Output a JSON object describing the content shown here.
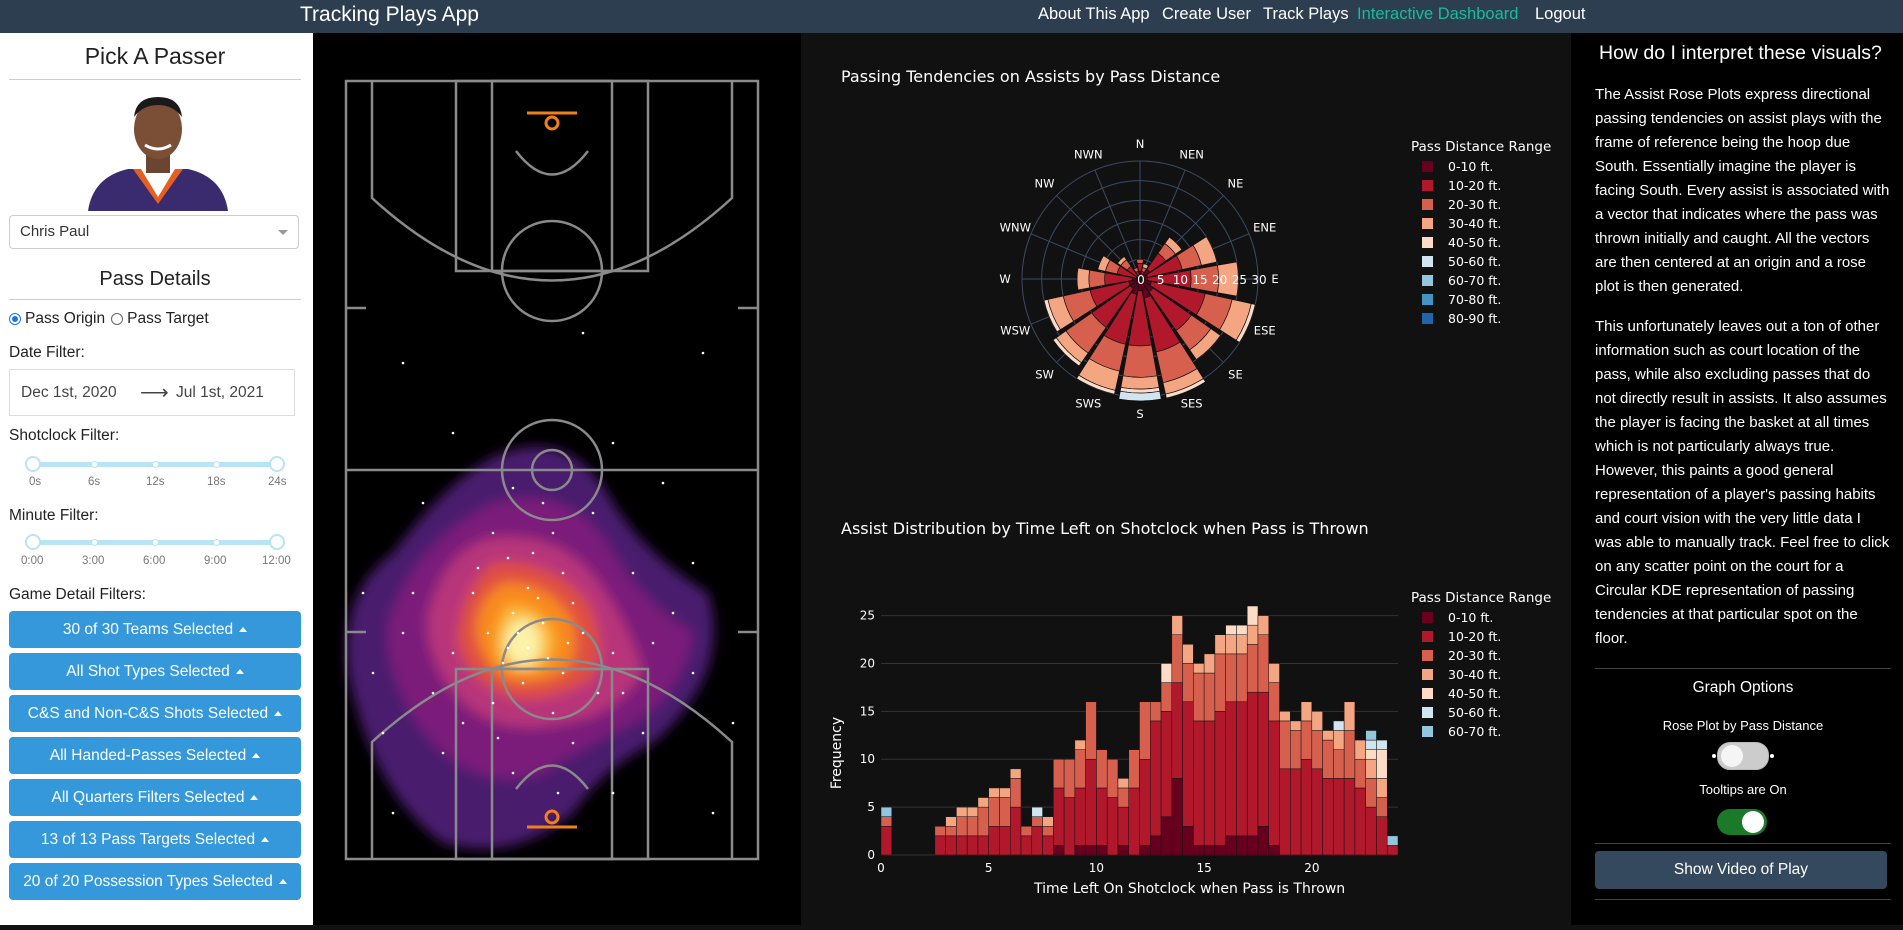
{
  "navbar": {
    "brand": "Tracking Plays App",
    "links": [
      "About This App",
      "Create User",
      "Track Plays",
      "Interactive Dashboard",
      "Logout"
    ],
    "active": "Interactive Dashboard",
    "colors": {
      "bg": "#2c3e50",
      "active": "#18bc9c"
    }
  },
  "sidebar": {
    "pick_title": "Pick A Passer",
    "passer": "Chris Paul",
    "details_title": "Pass Details",
    "radio": {
      "origin": "Pass Origin",
      "target": "Pass Target",
      "selected": "Pass Origin"
    },
    "date_filter_label": "Date Filter:",
    "date_start": "Dec 1st, 2020",
    "date_arrow": "⟶",
    "date_end": "Jul 1st, 2021",
    "shotclock_label": "Shotclock Filter:",
    "shotclock_ticks": [
      "0s",
      "6s",
      "12s",
      "18s",
      "24s"
    ],
    "minute_label": "Minute Filter:",
    "minute_ticks": [
      "0:00",
      "3:00",
      "6:00",
      "9:00",
      "12:00"
    ],
    "game_detail_label": "Game Detail Filters:",
    "filter_buttons": [
      "30 of 30 Teams Selected",
      "All Shot Types Selected",
      "C&S and Non-C&S Shots Selected",
      "All Handed-Passes Selected",
      "All Quarters Filters Selected",
      "13 of 13 Pass Targets Selected",
      "20 of 20 Possession Types Selected"
    ],
    "button_color": "#3498db"
  },
  "rose": {
    "title": "Passing Tendencies on Assists by Pass Distance",
    "directions": [
      "N",
      "NEN",
      "NE",
      "ENE",
      "E",
      "ESE",
      "SE",
      "SES",
      "S",
      "SWS",
      "SW",
      "WSW",
      "W",
      "WNW",
      "NW",
      "NWN"
    ],
    "radial_ticks": [
      "0",
      "5",
      "10",
      "15",
      "20",
      "25",
      "30"
    ],
    "legend_title": "Pass Distance Range",
    "legend": [
      "0-10 ft.",
      "10-20 ft.",
      "20-30 ft.",
      "30-40 ft.",
      "40-50 ft.",
      "50-60 ft.",
      "60-70 ft.",
      "70-80 ft.",
      "80-90 ft."
    ]
  },
  "histogram": {
    "title": "Assist Distribution by Time Left on Shotclock when Pass is Thrown",
    "xlabel": "Time Left On Shotclock when Pass is Thrown",
    "ylabel": "Frequency",
    "xticks": [
      "0",
      "5",
      "10",
      "15",
      "20"
    ],
    "yticks": [
      "0",
      "5",
      "10",
      "15",
      "20",
      "25"
    ],
    "legend_title": "Pass Distance Range",
    "legend": [
      "0-10 ft.",
      "10-20 ft.",
      "20-30 ft.",
      "30-40 ft.",
      "40-50 ft.",
      "50-60 ft.",
      "60-70 ft."
    ]
  },
  "chart_data": {
    "type": "bar",
    "title": "Assist Distribution by Time Left on Shotclock when Pass is Thrown",
    "xlabel": "Time Left On Shotclock when Pass is Thrown",
    "ylabel": "Frequency",
    "xlim": [
      0,
      24
    ],
    "ylim": [
      0,
      26
    ],
    "bin_width": 0.5,
    "stacked": true,
    "bins": [
      [
        0,
        5,
        [
          0,
          3,
          1,
          0,
          0,
          0,
          1
        ]
      ],
      [
        0.5,
        0,
        [
          0,
          0,
          0,
          0,
          0,
          0,
          0
        ]
      ],
      [
        1,
        0,
        [
          0,
          0,
          0,
          0,
          0,
          0,
          0
        ]
      ],
      [
        1.5,
        0,
        [
          0,
          0,
          0,
          0,
          0,
          0,
          0
        ]
      ],
      [
        2,
        0,
        [
          0,
          0,
          0,
          0,
          0,
          0,
          0
        ]
      ],
      [
        2.5,
        3,
        [
          0,
          2,
          1,
          0,
          0,
          0,
          0
        ]
      ],
      [
        3,
        4,
        [
          0,
          2,
          1,
          1,
          0,
          0,
          0
        ]
      ],
      [
        3.5,
        5,
        [
          0,
          2,
          2,
          1,
          0,
          0,
          0
        ]
      ],
      [
        4,
        5,
        [
          0,
          2,
          2,
          1,
          0,
          0,
          0
        ]
      ],
      [
        4.5,
        6,
        [
          0,
          2,
          3,
          1,
          0,
          0,
          0
        ]
      ],
      [
        5,
        7,
        [
          0,
          3,
          3,
          1,
          0,
          0,
          0
        ]
      ],
      [
        5.5,
        7,
        [
          0,
          3,
          3,
          1,
          0,
          0,
          0
        ]
      ],
      [
        6,
        9,
        [
          0,
          5,
          3,
          1,
          0,
          0,
          0
        ]
      ],
      [
        6.5,
        3,
        [
          0,
          2,
          1,
          0,
          0,
          0,
          0
        ]
      ],
      [
        7,
        5,
        [
          0,
          3,
          1,
          0,
          0,
          1,
          0
        ]
      ],
      [
        7.5,
        4,
        [
          0,
          2,
          1,
          1,
          0,
          0,
          0
        ]
      ],
      [
        8,
        10,
        [
          1,
          6,
          3,
          0,
          0,
          0,
          0
        ]
      ],
      [
        8.5,
        10,
        [
          0,
          6,
          4,
          0,
          0,
          0,
          0
        ]
      ],
      [
        9,
        12,
        [
          1,
          6,
          4,
          1,
          0,
          0,
          0
        ]
      ],
      [
        9.5,
        16,
        [
          1,
          9,
          6,
          0,
          0,
          0,
          0
        ]
      ],
      [
        10,
        11,
        [
          1,
          6,
          4,
          0,
          0,
          0,
          0
        ]
      ],
      [
        10.5,
        10,
        [
          0,
          6,
          4,
          0,
          0,
          0,
          0
        ]
      ],
      [
        11,
        8,
        [
          1,
          4,
          2,
          1,
          0,
          0,
          0
        ]
      ],
      [
        11.5,
        11,
        [
          0,
          7,
          4,
          0,
          0,
          0,
          0
        ]
      ],
      [
        12,
        16,
        [
          1,
          9,
          6,
          0,
          0,
          0,
          0
        ]
      ],
      [
        12.5,
        16,
        [
          2,
          12,
          2,
          0,
          0,
          0,
          0
        ]
      ],
      [
        13,
        20,
        [
          4,
          11,
          3,
          0,
          2,
          0,
          0
        ]
      ],
      [
        13.5,
        25,
        [
          8,
          10,
          5,
          2,
          0,
          0,
          0
        ]
      ],
      [
        14,
        22,
        [
          3,
          13,
          4,
          2,
          0,
          0,
          0
        ]
      ],
      [
        14.5,
        20,
        [
          1,
          13,
          5,
          1,
          0,
          0,
          0
        ]
      ],
      [
        15,
        21,
        [
          1,
          13,
          5,
          2,
          0,
          0,
          0
        ]
      ],
      [
        15.5,
        23,
        [
          1,
          14,
          6,
          2,
          0,
          0,
          0
        ]
      ],
      [
        16,
        24,
        [
          2,
          14,
          5,
          2,
          1,
          0,
          0
        ]
      ],
      [
        16.5,
        24,
        [
          2,
          14,
          5,
          2,
          1,
          0,
          0
        ]
      ],
      [
        17,
        26,
        [
          2,
          15,
          5,
          2,
          2,
          0,
          0
        ]
      ],
      [
        17.5,
        25,
        [
          3,
          14,
          6,
          2,
          0,
          0,
          0
        ]
      ],
      [
        18,
        20,
        [
          1,
          13,
          4,
          2,
          0,
          0,
          0
        ]
      ],
      [
        18.5,
        15,
        [
          0,
          9,
          5,
          1,
          0,
          0,
          0
        ]
      ],
      [
        19,
        14,
        [
          0,
          9,
          4,
          1,
          0,
          0,
          0
        ]
      ],
      [
        19.5,
        16,
        [
          0,
          10,
          4,
          2,
          0,
          0,
          0
        ]
      ],
      [
        20,
        15,
        [
          0,
          9,
          4,
          2,
          0,
          0,
          0
        ]
      ],
      [
        20.5,
        13,
        [
          0,
          8,
          4,
          1,
          0,
          0,
          0
        ]
      ],
      [
        21,
        14,
        [
          0,
          8,
          3,
          2,
          0,
          1,
          0
        ]
      ],
      [
        21.5,
        16,
        [
          0,
          8,
          5,
          3,
          0,
          0,
          0
        ]
      ],
      [
        22,
        12,
        [
          0,
          7,
          3,
          2,
          0,
          0,
          0
        ]
      ],
      [
        22.5,
        13,
        [
          0,
          5,
          3,
          2,
          1,
          1,
          1
        ]
      ],
      [
        23,
        12,
        [
          0,
          4,
          2,
          2,
          3,
          1,
          0
        ]
      ],
      [
        23.5,
        2,
        [
          0,
          1,
          0,
          0,
          0,
          0,
          1
        ]
      ]
    ]
  },
  "rose_chart": {
    "type": "polar-bar",
    "title": "Passing Tendencies on Assists by Pass Distance",
    "radial_max": 30,
    "series_names": [
      "0-10 ft.",
      "10-20 ft.",
      "20-30 ft.",
      "30-40 ft.",
      "40-50 ft.",
      "50-60 ft.",
      "60-70 ft."
    ],
    "colors": [
      "#67001f",
      "#b2182b",
      "#d6604d",
      "#f4a582",
      "#fddbc7",
      "#d1e5f0",
      "#92c5de",
      "#4393c3",
      "#2166ac",
      "#053061"
    ],
    "stacked_by_direction": [
      {
        "dir": "N",
        "values": [
          2,
          2,
          1,
          0,
          0,
          0,
          0
        ]
      },
      {
        "dir": "NEN",
        "values": [
          1,
          1,
          1,
          1,
          0,
          0,
          0
        ]
      },
      {
        "dir": "NE",
        "values": [
          3,
          5,
          3,
          2,
          0,
          0,
          0
        ]
      },
      {
        "dir": "ENE",
        "values": [
          2,
          9,
          5,
          4,
          0,
          0,
          0
        ]
      },
      {
        "dir": "E",
        "values": [
          2,
          11,
          7,
          5,
          0,
          0,
          0
        ]
      },
      {
        "dir": "ESE",
        "values": [
          3,
          14,
          7,
          5,
          1,
          0,
          0
        ]
      },
      {
        "dir": "SE",
        "values": [
          4,
          12,
          6,
          3,
          0,
          0,
          0
        ]
      },
      {
        "dir": "SES",
        "values": [
          5,
          14,
          8,
          3,
          1,
          0,
          0
        ]
      },
      {
        "dir": "S",
        "values": [
          3,
          14,
          8,
          3,
          1,
          2,
          0
        ]
      },
      {
        "dir": "SWS",
        "values": [
          4,
          13,
          7,
          5,
          1,
          0,
          0
        ]
      },
      {
        "dir": "SW",
        "values": [
          3,
          12,
          8,
          3,
          1,
          0,
          0
        ]
      },
      {
        "dir": "WSW",
        "values": [
          3,
          10,
          7,
          4,
          1,
          0,
          0
        ]
      },
      {
        "dir": "W",
        "values": [
          2,
          7,
          4,
          3,
          0,
          0,
          0
        ]
      },
      {
        "dir": "WNW",
        "values": [
          1,
          5,
          3,
          2,
          0,
          0,
          0
        ]
      },
      {
        "dir": "NW",
        "values": [
          1,
          3,
          2,
          1,
          0,
          0,
          0
        ]
      },
      {
        "dir": "NWN",
        "values": [
          1,
          1,
          1,
          0,
          0,
          0,
          0
        ]
      }
    ]
  },
  "right_panel": {
    "title": "How do I interpret these visuals?",
    "para1": "The Assist Rose Plots express directional passing tendencies on assist plays with the frame of reference being the hoop due South. Essentially imagine the player is facing South. Every assist is associated with a vector that indicates where the pass was thrown initially and caught. All the vectors are then centered at an origin and a rose plot is then generated.",
    "para2": "This unfortunately leaves out a ton of other information such as court location of the pass, while also excluding passes that do not directly result in assists. It also assumes the player is facing the basket at all times which is not particularly always true. However, this paints a good general representation of a player's passing habits and court vision with the very little data I was able to manually track. Feel free to click on any scatter point on the court for a Circular KDE representation of passing tendencies at that particular spot on the floor.",
    "graph_options": "Graph Options",
    "toggle1_label": "Rose Plot by Pass Distance",
    "toggle2_label": "Tooltips are On",
    "video_button": "Show Video of Play",
    "toggle_on_color": "#1a7a2a"
  }
}
